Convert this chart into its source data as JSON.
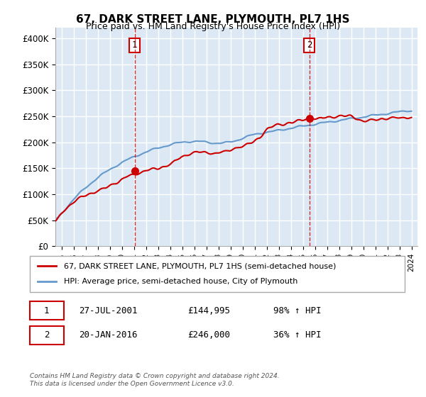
{
  "title": "67, DARK STREET LANE, PLYMOUTH, PL7 1HS",
  "subtitle": "Price paid vs. HM Land Registry's House Price Index (HPI)",
  "ylabel_ticks": [
    "£0",
    "£50K",
    "£100K",
    "£150K",
    "£200K",
    "£250K",
    "£300K",
    "£350K",
    "£400K"
  ],
  "ylim": [
    0,
    420000
  ],
  "xlim_start": 1995.0,
  "xlim_end": 2025.0,
  "background_color": "#dce9f5",
  "plot_bg_color": "#dce9f5",
  "grid_color": "#ffffff",
  "red_line_color": "#cc0000",
  "blue_line_color": "#6699cc",
  "marker1_date": 2001.57,
  "marker1_price": 144995,
  "marker1_label": "1",
  "marker2_date": 2016.05,
  "marker2_price": 246000,
  "marker2_label": "2",
  "legend_line1": "67, DARK STREET LANE, PLYMOUTH, PL7 1HS (semi-detached house)",
  "legend_line2": "HPI: Average price, semi-detached house, City of Plymouth",
  "annotation1_date": "27-JUL-2001",
  "annotation1_price": "£144,995",
  "annotation1_hpi": "98% ↑ HPI",
  "annotation2_date": "20-JAN-2016",
  "annotation2_price": "£246,000",
  "annotation2_hpi": "36% ↑ HPI",
  "footer": "Contains HM Land Registry data © Crown copyright and database right 2024.\nThis data is licensed under the Open Government Licence v3.0."
}
